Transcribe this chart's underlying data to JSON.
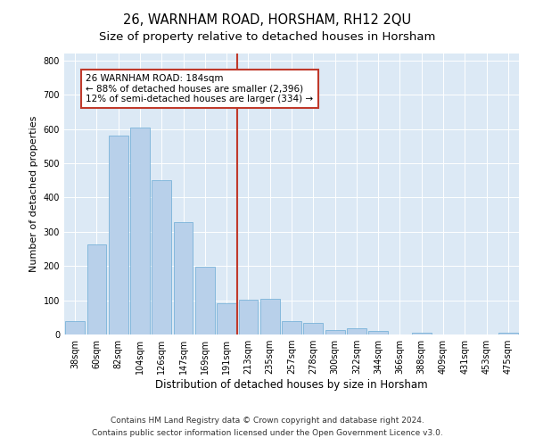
{
  "title": "26, WARNHAM ROAD, HORSHAM, RH12 2QU",
  "subtitle": "Size of property relative to detached houses in Horsham",
  "xlabel": "Distribution of detached houses by size in Horsham",
  "ylabel": "Number of detached properties",
  "categories": [
    "38sqm",
    "60sqm",
    "82sqm",
    "104sqm",
    "126sqm",
    "147sqm",
    "169sqm",
    "191sqm",
    "213sqm",
    "235sqm",
    "257sqm",
    "278sqm",
    "300sqm",
    "322sqm",
    "344sqm",
    "366sqm",
    "388sqm",
    "409sqm",
    "431sqm",
    "453sqm",
    "475sqm"
  ],
  "values": [
    38,
    263,
    580,
    603,
    450,
    328,
    197,
    92,
    102,
    105,
    40,
    33,
    14,
    17,
    10,
    0,
    6,
    0,
    0,
    0,
    6
  ],
  "bar_color": "#b8d0ea",
  "bar_edgecolor": "#6aaad4",
  "vline_x_idx": 7,
  "vline_color": "#c0392b",
  "annotation_line1": "26 WARNHAM ROAD: 184sqm",
  "annotation_line2": "← 88% of detached houses are smaller (2,396)",
  "annotation_line3": "12% of semi-detached houses are larger (334) →",
  "annotation_box_edgecolor": "#c0392b",
  "ylim": [
    0,
    820
  ],
  "yticks": [
    0,
    100,
    200,
    300,
    400,
    500,
    600,
    700,
    800
  ],
  "footer_line1": "Contains HM Land Registry data © Crown copyright and database right 2024.",
  "footer_line2": "Contains public sector information licensed under the Open Government Licence v3.0.",
  "bg_color": "#dce9f5",
  "title_fontsize": 10.5,
  "subtitle_fontsize": 9.5,
  "xlabel_fontsize": 8.5,
  "ylabel_fontsize": 8,
  "tick_fontsize": 7,
  "footer_fontsize": 6.5,
  "annotation_fontsize": 7.5
}
